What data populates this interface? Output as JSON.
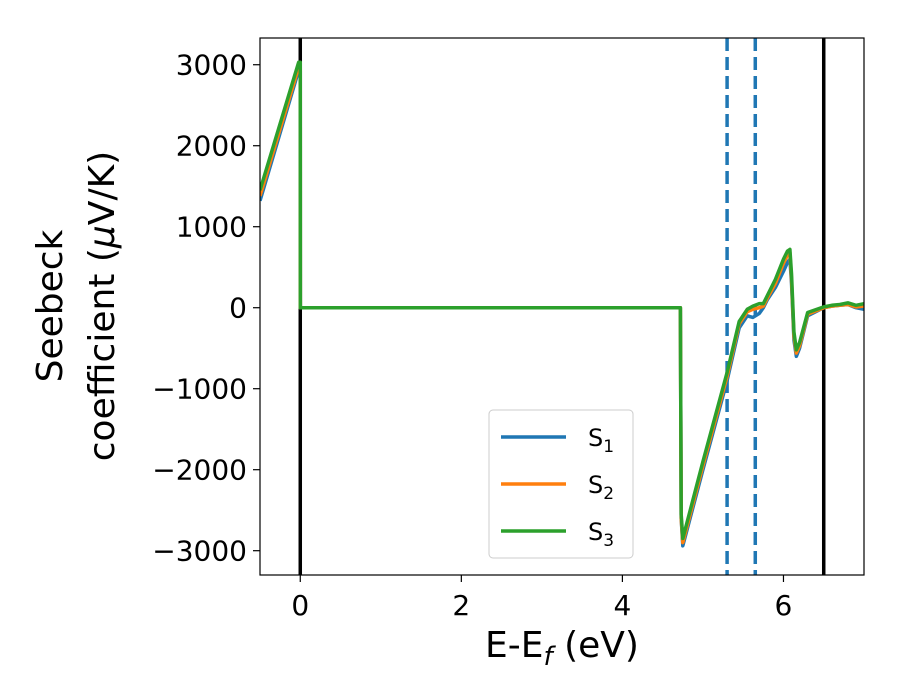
{
  "chart_data": {
    "type": "line",
    "xlabel_main": "E-E",
    "xlabel_sub": "f",
    "xlabel_unit": " (eV)",
    "ylabel_line1": "Seebeck",
    "ylabel_line2_pre": "coefficient  (",
    "ylabel_mu": "μ",
    "ylabel_line2_post": "V/K)",
    "xlim": [
      -0.5,
      7.0
    ],
    "ylim": [
      -3300,
      3330
    ],
    "x_ticks": [
      0,
      2,
      4,
      6
    ],
    "x_tick_labels": [
      "0",
      "2",
      "4",
      "6"
    ],
    "y_ticks": [
      3000,
      2000,
      1000,
      0,
      -1000,
      -2000,
      -3000
    ],
    "y_tick_labels": [
      "3000",
      "2000",
      "1000",
      "0",
      "−1000",
      "−2000",
      "−3000"
    ],
    "grid": false,
    "legend_position": "lower-center",
    "vlines": [
      {
        "x": 0.0,
        "style": "solid",
        "color": "#000000"
      },
      {
        "x": 6.5,
        "style": "solid",
        "color": "#000000"
      },
      {
        "x": 5.3,
        "style": "dashed",
        "color": "#1f77b4"
      },
      {
        "x": 5.65,
        "style": "dashed",
        "color": "#1f77b4"
      }
    ],
    "series": [
      {
        "name": "S",
        "sub": "1",
        "color": "#1f77b4",
        "x": [
          -0.5,
          -0.02,
          0.0,
          0.001,
          4.72,
          4.73,
          4.75,
          5.0,
          5.3,
          5.45,
          5.55,
          5.62,
          5.7,
          5.75,
          5.8,
          5.9,
          6.0,
          6.05,
          6.08,
          6.1,
          6.13,
          6.16,
          6.2,
          6.3,
          6.5,
          6.6,
          6.7,
          6.8,
          6.9,
          7.0
        ],
        "y": [
          1320,
          2930,
          2930,
          0,
          0,
          -2600,
          -2940,
          -2000,
          -900,
          -250,
          -100,
          -120,
          -70,
          0,
          100,
          250,
          450,
          560,
          600,
          300,
          -400,
          -600,
          -500,
          -100,
          0,
          20,
          30,
          40,
          0,
          -20
        ]
      },
      {
        "name": "S",
        "sub": "2",
        "color": "#ff7f0e",
        "x": [
          -0.5,
          -0.02,
          0.0,
          0.001,
          4.72,
          4.73,
          4.75,
          5.0,
          5.3,
          5.45,
          5.55,
          5.62,
          5.7,
          5.75,
          5.8,
          5.9,
          6.0,
          6.05,
          6.08,
          6.1,
          6.13,
          6.16,
          6.2,
          6.3,
          6.5,
          6.6,
          6.7,
          6.8,
          6.9,
          7.0
        ],
        "y": [
          1380,
          2970,
          2970,
          0,
          0,
          -2600,
          -2900,
          -1950,
          -850,
          -200,
          -50,
          -20,
          0,
          20,
          120,
          300,
          550,
          650,
          680,
          350,
          -350,
          -560,
          -470,
          -80,
          0,
          20,
          30,
          40,
          10,
          20
        ]
      },
      {
        "name": "S",
        "sub": "3",
        "color": "#2ca02c",
        "x": [
          -0.5,
          -0.02,
          0.0,
          0.001,
          4.72,
          4.73,
          4.75,
          5.0,
          5.3,
          5.45,
          5.55,
          5.62,
          5.7,
          5.75,
          5.8,
          5.9,
          6.0,
          6.05,
          6.08,
          6.1,
          6.13,
          6.16,
          6.2,
          6.3,
          6.5,
          6.6,
          6.7,
          6.8,
          6.9,
          7.0
        ],
        "y": [
          1450,
          3030,
          3030,
          0,
          0,
          -2550,
          -2850,
          -1900,
          -800,
          -170,
          -20,
          20,
          50,
          50,
          150,
          350,
          600,
          700,
          720,
          420,
          -300,
          -520,
          -430,
          -60,
          10,
          30,
          40,
          60,
          30,
          50
        ]
      }
    ]
  }
}
